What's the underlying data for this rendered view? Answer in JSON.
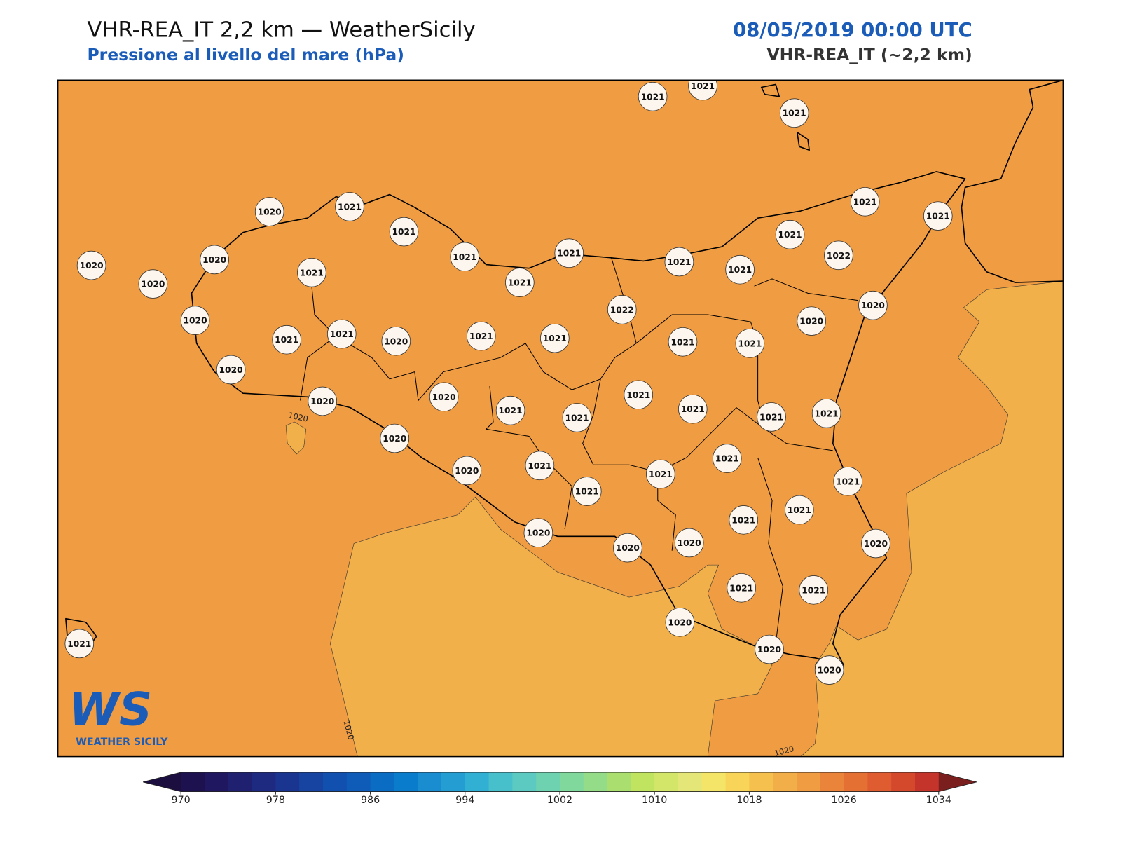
{
  "header": {
    "title": "VHR-REA_IT 2,2 km — WeatherSicily",
    "subtitle": "Pressione al livello del mare (hPa)",
    "date": "08/05/2019 00:00 UTC",
    "model": "VHR-REA_IT (~2,2 km)"
  },
  "stations": [
    1021,
    1021,
    1021,
    1020,
    1021,
    1021,
    1021,
    1021,
    1020,
    1020,
    1020,
    1021,
    1021,
    1021,
    1021,
    1021,
    1022,
    1021,
    1021,
    1022,
    1020,
    1020,
    1020,
    1021,
    1021,
    1020,
    1021,
    1021,
    1021,
    1021,
    1020,
    1020,
    1020,
    1021,
    1021,
    1021,
    1021,
    1021,
    1021,
    1020,
    1021,
    1020,
    1021,
    1021,
    1021,
    1021,
    1021,
    1021,
    1020,
    1020,
    1020,
    1020,
    1021,
    1021,
    1020,
    1020,
    1020,
    1021
  ],
  "contour_labels": [
    1020,
    1020,
    1020
  ],
  "logo": {
    "mark": "WS",
    "text": "WEATHER SICILY"
  },
  "colorbar": {
    "lim": [
      970,
      1034
    ],
    "ticks": [
      970,
      978,
      986,
      994,
      1002,
      1010,
      1018,
      1026,
      1034
    ],
    "colors": [
      "#1e1150",
      "#1f1860",
      "#1f2070",
      "#1d2a80",
      "#1a3590",
      "#1644a0",
      "#1250b0",
      "#0e5cb8",
      "#0b6cc4",
      "#0a7ccc",
      "#1a8cd0",
      "#249ed2",
      "#32b0d4",
      "#48c0cc",
      "#5ccac0",
      "#6ed2b0",
      "#80d89c",
      "#94dc88",
      "#aadf70",
      "#c0e460",
      "#d4e66a",
      "#e4e678",
      "#f4e468",
      "#f8d458",
      "#f6c04e",
      "#f2ae48",
      "#f09c42",
      "#ea843a",
      "#e47034",
      "#de5c30",
      "#d4482c",
      "#c4342a"
    ],
    "under": "#1c0f40",
    "over": "#7a1e1e"
  }
}
